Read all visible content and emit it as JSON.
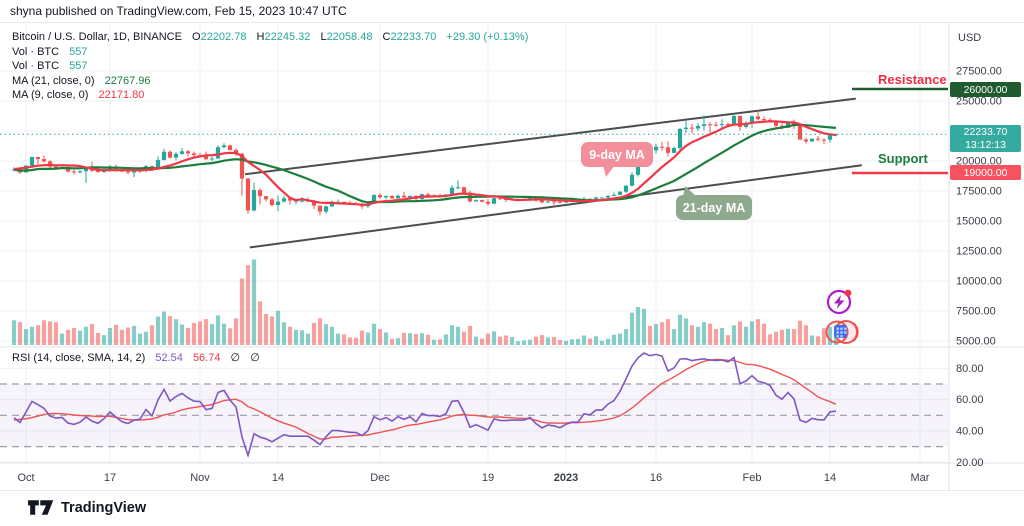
{
  "attribution": "shyna published on TradingView.com, Feb 15, 2023 10:47 UTC",
  "symbol_legend": {
    "title": "Bitcoin / U.S. Dollar, 1D, BINANCE",
    "ohlc": {
      "o_label": "O",
      "o": "22202.78",
      "h_label": "H",
      "h": "22245.32",
      "l_label": "L",
      "l": "22058.48",
      "c_label": "C",
      "c": "22233.70",
      "change": "+29.30 (+0.13%)"
    },
    "vol_rows": [
      {
        "label": "Vol · BTC",
        "value": "557"
      },
      {
        "label": "Vol · BTC",
        "value": "557"
      }
    ],
    "ma_rows": [
      {
        "label": "MA (21, close, 0)",
        "value": "22767.96"
      },
      {
        "label": "MA (9, close, 0)",
        "value": "22171.80"
      }
    ]
  },
  "rsi_legend": {
    "label": "RSI (14, close, SMA, 14, 2)",
    "rsi_value": "52.54",
    "ma_value": "56.74",
    "empty1": "∅",
    "empty2": "∅"
  },
  "price_scale": {
    "currency_label": "USD",
    "current_price": "22233.70",
    "countdown": "13:12:13",
    "resistance_price": "26000.00",
    "support_price": "19000.00"
  },
  "annotations": {
    "resistance_label": "Resistance",
    "support_label": "Support",
    "ma9_callout": "9-day MA",
    "ma21_callout": "21-day MA"
  },
  "footer": {
    "brand": "TradingView"
  },
  "colors": {
    "up": "#26a69a",
    "down": "#ef5350",
    "vol_up": "rgba(38,166,154,0.55)",
    "vol_down": "rgba(239,83,80,0.55)",
    "ma_fast": "#f23645",
    "ma_slow": "#1b7e3c",
    "rsi": "#7e57c2",
    "rsi_ma": "#ef5350",
    "grid": "#edf0f6",
    "axis_text": "#3a3e47",
    "channel": "#4d4d4d",
    "current_line": "#26a69a",
    "resistance_line": "#1f5b2f",
    "support_line": "#f23645",
    "band_fill": "rgba(126,87,194,0.07)",
    "band_dash": "#9b9ea6"
  },
  "chart_data": {
    "type": "candlestick",
    "title": "Bitcoin / U.S. Dollar, 1D, BINANCE",
    "xlabel": "",
    "ylabel": "USD",
    "legend_position": "top-left",
    "grid": true,
    "y_axis": {
      "visible_range": [
        4200,
        28800
      ],
      "gridline_step": 2500,
      "tick_labels": [
        {
          "v": 27500,
          "label": "27500.00"
        },
        {
          "v": 25000,
          "label": "25000.00"
        },
        {
          "v": 20000,
          "label": "20000.00"
        },
        {
          "v": 17500,
          "label": "17500.00"
        },
        {
          "v": 15000,
          "label": "15000.00"
        },
        {
          "v": 12500,
          "label": "12500.00"
        },
        {
          "v": 10000,
          "label": "10000.00"
        },
        {
          "v": 7500,
          "label": "7500.00"
        },
        {
          "v": 5000,
          "label": "5000.00"
        }
      ],
      "gridlines": [
        27500,
        25000,
        22500,
        20000,
        17500,
        15000,
        12500,
        10000,
        7500,
        5000
      ]
    },
    "x_axis_ticks": [
      {
        "i": 2,
        "label": "Oct"
      },
      {
        "i": 16,
        "label": "17"
      },
      {
        "i": 31,
        "label": "Nov"
      },
      {
        "i": 44,
        "label": "14"
      },
      {
        "i": 61,
        "label": "Dec"
      },
      {
        "i": 79,
        "label": "19"
      },
      {
        "i": 92,
        "label": "2023",
        "bold": true
      },
      {
        "i": 107,
        "label": "16"
      },
      {
        "i": 123,
        "label": "Feb"
      },
      {
        "i": 136,
        "label": "14"
      },
      {
        "i": 151,
        "label": "Mar"
      }
    ],
    "levels": {
      "resistance": 26000,
      "support": 19000,
      "last_price": 22233.7
    },
    "channel": {
      "upper": {
        "i1": 38.5,
        "p1": 18900,
        "i2": 140.3,
        "p2": 25200
      },
      "lower": {
        "i1": 39.3,
        "p1": 12800,
        "i2": 141.3,
        "p2": 19650
      }
    },
    "indicators": {
      "ma_fast_len": 9,
      "ma_slow_len": 21,
      "rsi_len": 14,
      "rsi_sma_len": 14
    },
    "rsi_pane": {
      "tick_labels": [
        {
          "v": 80,
          "label": "80.00"
        },
        {
          "v": 60,
          "label": "60.00"
        },
        {
          "v": 40,
          "label": "40.00"
        },
        {
          "v": 20,
          "label": "20.00"
        }
      ],
      "band": [
        70,
        30
      ],
      "mid": 50
    },
    "pre_closes": [
      20100,
      20050,
      19800,
      19600,
      19950,
      20130,
      19830,
      19590,
      18800,
      18790,
      19290,
      19320,
      19250,
      19600,
      20170,
      20260,
      19800,
      19290,
      18450,
      19650,
      19530,
      18870,
      18460,
      19400,
      19550,
      18890,
      18540,
      18480,
      19080,
      19560,
      19430,
      19570,
      19430,
      19590,
      19420
    ],
    "candles": [
      [
        19300,
        19480,
        19160,
        19310,
        650
      ],
      [
        19310,
        19380,
        18920,
        19050,
        600
      ],
      [
        19050,
        19650,
        19020,
        19620,
        420
      ],
      [
        19620,
        20380,
        19520,
        20330,
        480
      ],
      [
        20330,
        20360,
        19750,
        20160,
        520
      ],
      [
        20160,
        20450,
        19870,
        19970,
        650
      ],
      [
        19970,
        20060,
        19320,
        19530,
        620
      ],
      [
        19530,
        19620,
        19260,
        19410,
        600
      ],
      [
        19410,
        19550,
        19320,
        19440,
        300
      ],
      [
        19440,
        19520,
        19020,
        19130,
        400
      ],
      [
        19130,
        19260,
        18860,
        19050,
        450
      ],
      [
        19050,
        19230,
        18980,
        19150,
        380
      ],
      [
        19150,
        19500,
        18190,
        19380,
        480
      ],
      [
        19380,
        19950,
        19100,
        19180,
        550
      ],
      [
        19180,
        19390,
        19060,
        19070,
        320
      ],
      [
        19070,
        19550,
        19050,
        19260,
        260
      ],
      [
        19260,
        19670,
        19090,
        19550,
        450
      ],
      [
        19550,
        19700,
        19100,
        19330,
        530
      ],
      [
        19330,
        19350,
        19080,
        19120,
        400
      ],
      [
        19120,
        19350,
        18900,
        19040,
        460
      ],
      [
        19040,
        19250,
        18650,
        19160,
        500
      ],
      [
        19160,
        19250,
        19030,
        19200,
        300
      ],
      [
        19200,
        19690,
        19070,
        19570,
        350
      ],
      [
        19570,
        19600,
        19160,
        19330,
        520
      ],
      [
        19330,
        20390,
        19240,
        20080,
        750
      ],
      [
        20080,
        21020,
        20050,
        20770,
        880
      ],
      [
        20770,
        20870,
        20200,
        20290,
        760
      ],
      [
        20290,
        20750,
        20040,
        20590,
        680
      ],
      [
        20590,
        21080,
        20520,
        20810,
        540
      ],
      [
        20810,
        20930,
        20380,
        20630,
        450
      ],
      [
        20630,
        20800,
        20230,
        20490,
        580
      ],
      [
        20490,
        20700,
        20330,
        20480,
        620
      ],
      [
        20480,
        20800,
        20060,
        20150,
        680
      ],
      [
        20150,
        20380,
        20000,
        20210,
        550
      ],
      [
        20210,
        21300,
        20180,
        21150,
        780
      ],
      [
        21150,
        21480,
        21070,
        21300,
        560
      ],
      [
        21300,
        21360,
        20900,
        20910,
        440
      ],
      [
        20910,
        21070,
        20430,
        20600,
        700
      ],
      [
        20600,
        20700,
        17120,
        18540,
        1750
      ],
      [
        18540,
        18590,
        15590,
        15880,
        2100
      ],
      [
        15880,
        18200,
        15790,
        17580,
        2250
      ],
      [
        17580,
        17720,
        16370,
        17070,
        1150
      ],
      [
        17070,
        17100,
        16620,
        16800,
        820
      ],
      [
        16800,
        16940,
        16230,
        16330,
        750
      ],
      [
        16330,
        17130,
        15820,
        16620,
        900
      ],
      [
        16620,
        17110,
        16530,
        16890,
        600
      ],
      [
        16890,
        16990,
        16360,
        16700,
        480
      ],
      [
        16700,
        16750,
        16390,
        16700,
        400
      ],
      [
        16700,
        17000,
        16550,
        16700,
        390
      ],
      [
        16700,
        16970,
        16550,
        16700,
        300
      ],
      [
        16700,
        16750,
        15990,
        16280,
        580
      ],
      [
        16280,
        16300,
        15480,
        15780,
        700
      ],
      [
        15780,
        16290,
        15620,
        16220,
        550
      ],
      [
        16220,
        16700,
        16170,
        16600,
        480
      ],
      [
        16600,
        16800,
        16380,
        16600,
        300
      ],
      [
        16600,
        16610,
        16340,
        16520,
        280
      ],
      [
        16520,
        16690,
        16380,
        16460,
        200
      ],
      [
        16460,
        16590,
        16420,
        16440,
        190
      ],
      [
        16440,
        16490,
        16010,
        16220,
        380
      ],
      [
        16220,
        16550,
        16100,
        16440,
        330
      ],
      [
        16440,
        17250,
        16430,
        17160,
        560
      ],
      [
        17160,
        17320,
        16860,
        16970,
        420
      ],
      [
        16970,
        17110,
        16790,
        17090,
        330
      ],
      [
        17090,
        17140,
        16860,
        16890,
        160
      ],
      [
        16890,
        17200,
        16880,
        17110,
        180
      ],
      [
        17110,
        17420,
        16900,
        16970,
        320
      ],
      [
        16970,
        17110,
        16690,
        17090,
        310
      ],
      [
        17090,
        17150,
        16680,
        16840,
        290
      ],
      [
        16840,
        17300,
        16740,
        17230,
        310
      ],
      [
        17230,
        17360,
        17060,
        17130,
        270
      ],
      [
        17130,
        17230,
        17090,
        17130,
        140
      ],
      [
        17130,
        17270,
        17070,
        17090,
        150
      ],
      [
        17090,
        17240,
        16880,
        17210,
        280
      ],
      [
        17210,
        17980,
        17080,
        17780,
        520
      ],
      [
        17780,
        18390,
        17660,
        17810,
        480
      ],
      [
        17810,
        17860,
        17280,
        17360,
        350
      ],
      [
        17360,
        17530,
        16530,
        16630,
        500
      ],
      [
        16630,
        16800,
        16590,
        16740,
        220
      ],
      [
        16740,
        16790,
        16550,
        16600,
        170
      ],
      [
        16600,
        16820,
        16260,
        16440,
        300
      ],
      [
        16440,
        17060,
        16400,
        16900,
        360
      ],
      [
        16900,
        16930,
        16730,
        16830,
        220
      ],
      [
        16830,
        16870,
        16580,
        16820,
        250
      ],
      [
        16820,
        16950,
        16750,
        16840,
        210
      ],
      [
        16840,
        16880,
        16790,
        16840,
        100
      ],
      [
        16840,
        16860,
        16710,
        16840,
        120
      ],
      [
        16840,
        16940,
        16730,
        16920,
        140
      ],
      [
        16920,
        16970,
        16590,
        16710,
        220
      ],
      [
        16710,
        16790,
        16470,
        16550,
        260
      ],
      [
        16550,
        16660,
        16490,
        16630,
        200
      ],
      [
        16630,
        16650,
        16330,
        16600,
        210
      ],
      [
        16600,
        16630,
        16470,
        16540,
        130
      ],
      [
        16540,
        16630,
        16500,
        16620,
        110
      ],
      [
        16620,
        16770,
        16550,
        16670,
        150
      ],
      [
        16670,
        16780,
        16600,
        16670,
        160
      ],
      [
        16670,
        16990,
        16650,
        16860,
        250
      ],
      [
        16860,
        16880,
        16750,
        16840,
        170
      ],
      [
        16840,
        17040,
        16680,
        16950,
        230
      ],
      [
        16950,
        16980,
        16910,
        16950,
        110
      ],
      [
        16950,
        17180,
        16920,
        17090,
        160
      ],
      [
        17090,
        17390,
        17060,
        17180,
        270
      ],
      [
        17180,
        17480,
        17150,
        17440,
        300
      ],
      [
        17440,
        17990,
        17320,
        17940,
        420
      ],
      [
        17940,
        19070,
        17890,
        18850,
        850
      ],
      [
        18850,
        20000,
        18710,
        19930,
        1000
      ],
      [
        19930,
        21260,
        19890,
        20960,
        950
      ],
      [
        20960,
        21050,
        20560,
        20880,
        500
      ],
      [
        20880,
        21450,
        20610,
        21190,
        550
      ],
      [
        21190,
        21590,
        20850,
        21140,
        600
      ],
      [
        21140,
        21650,
        20390,
        20680,
        680
      ],
      [
        20680,
        21190,
        20670,
        21080,
        420
      ],
      [
        21080,
        22750,
        20900,
        22670,
        800
      ],
      [
        22670,
        23350,
        22320,
        22780,
        700
      ],
      [
        22780,
        23080,
        22290,
        22710,
        520
      ],
      [
        22710,
        23160,
        22510,
        22920,
        480
      ],
      [
        22920,
        23800,
        22540,
        23060,
        600
      ],
      [
        23060,
        23240,
        22320,
        23020,
        560
      ],
      [
        23020,
        23280,
        22860,
        23010,
        420
      ],
      [
        23010,
        23490,
        22630,
        23080,
        450
      ],
      [
        23080,
        23190,
        22880,
        23030,
        260
      ],
      [
        23030,
        23960,
        22970,
        23750,
        520
      ],
      [
        23750,
        23800,
        22510,
        22840,
        620
      ],
      [
        22840,
        23320,
        22710,
        23130,
        480
      ],
      [
        23130,
        23810,
        22760,
        23720,
        620
      ],
      [
        23720,
        24250,
        23400,
        23490,
        680
      ],
      [
        23490,
        23710,
        23190,
        23430,
        560
      ],
      [
        23430,
        23590,
        23290,
        23330,
        280
      ],
      [
        23330,
        23430,
        22630,
        22930,
        350
      ],
      [
        22930,
        23160,
        22650,
        22760,
        400
      ],
      [
        22760,
        23340,
        22750,
        23240,
        430
      ],
      [
        23240,
        23450,
        22680,
        22960,
        420
      ],
      [
        22960,
        23010,
        21730,
        21790,
        640
      ],
      [
        21790,
        21940,
        21450,
        21630,
        520
      ],
      [
        21630,
        21880,
        21590,
        21860,
        250
      ],
      [
        21860,
        22090,
        21640,
        21780,
        230
      ],
      [
        21780,
        21890,
        21400,
        21770,
        440
      ],
      [
        21770,
        22320,
        21530,
        22200,
        480
      ],
      [
        22200,
        22245,
        22060,
        22234,
        360
      ]
    ]
  }
}
